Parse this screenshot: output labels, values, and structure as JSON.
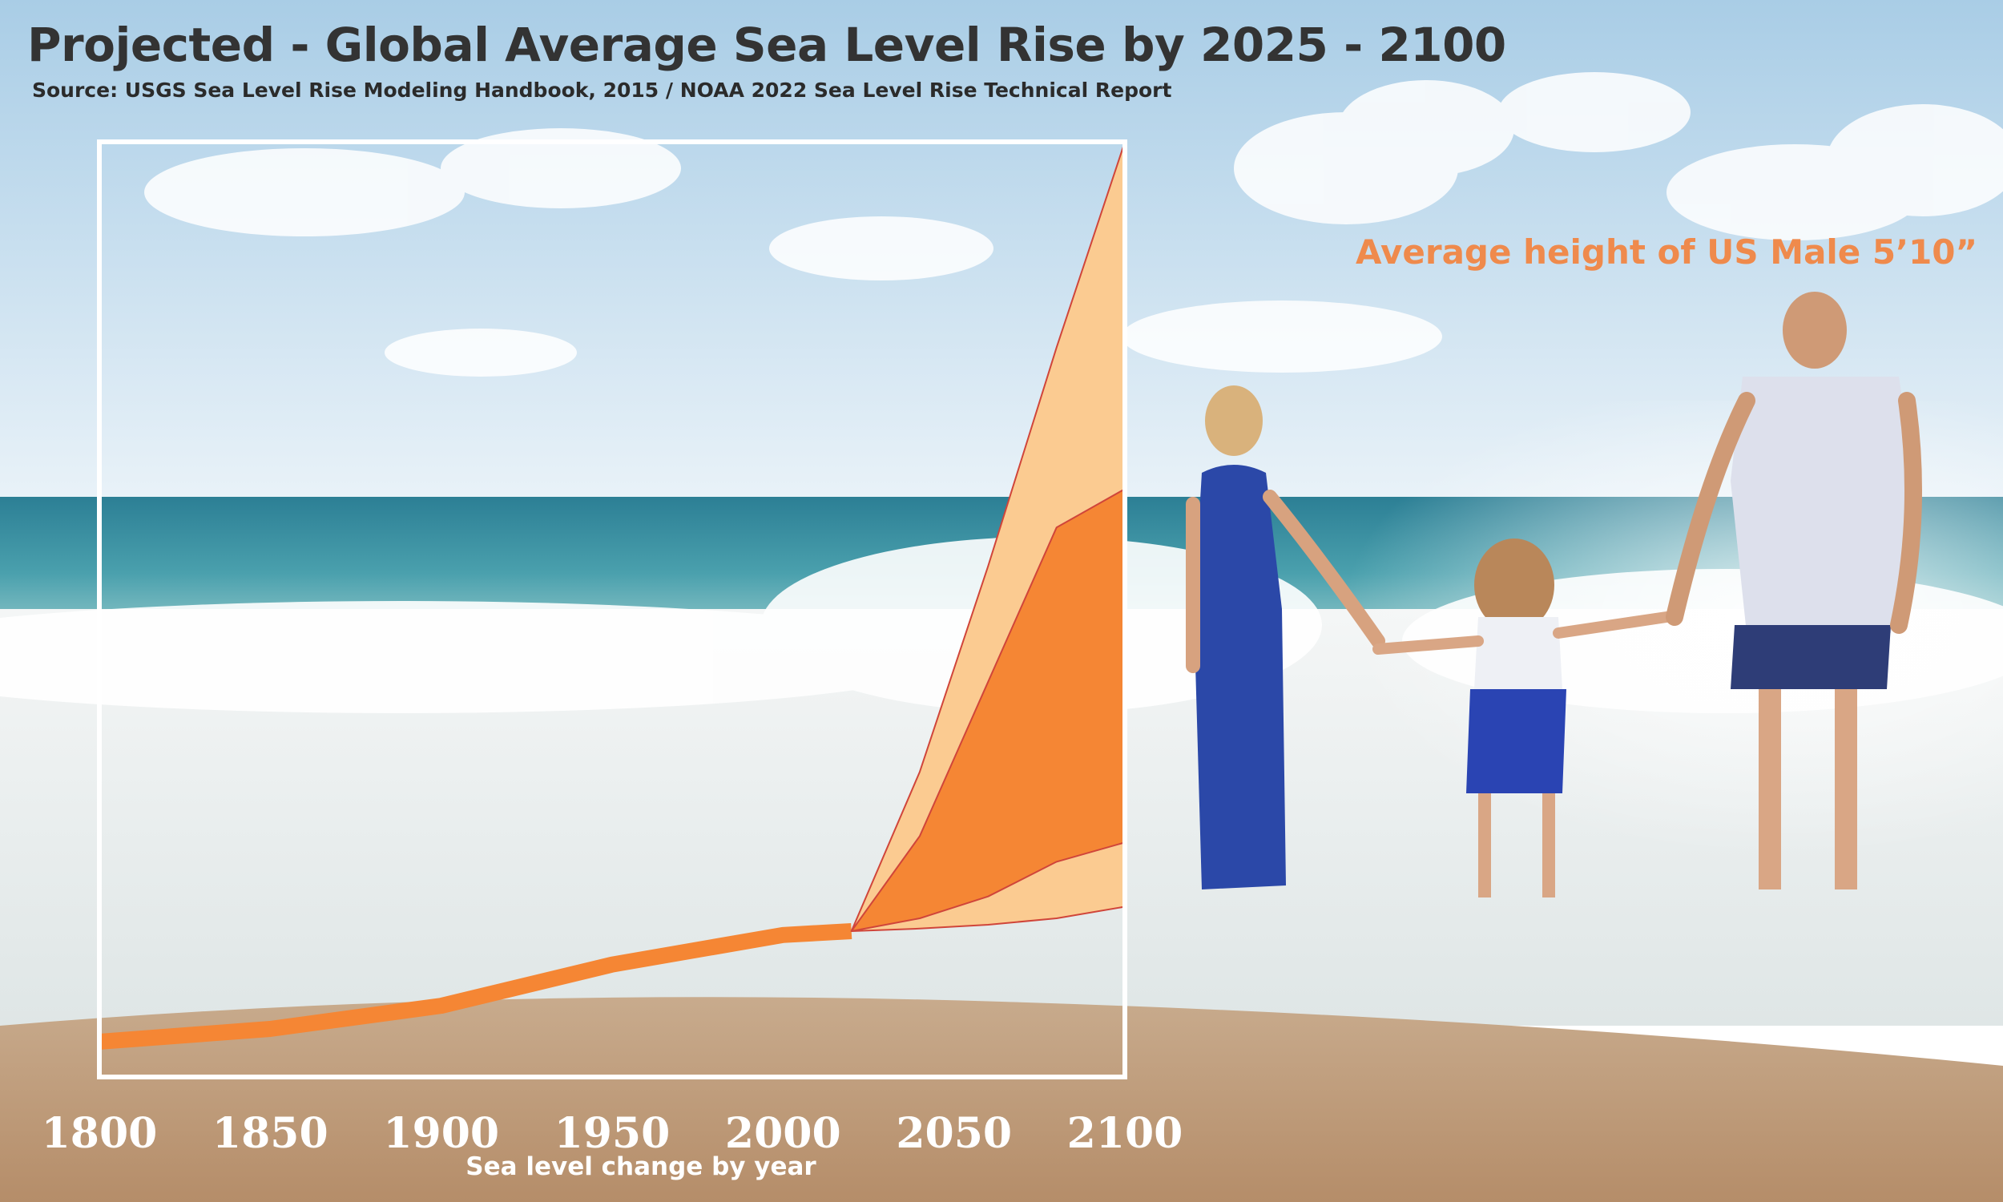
{
  "chart_data": {
    "type": "area",
    "title": "Projected - Global Average Sea Level Rise by 2025 - 2100",
    "subtitle": "Source:  USGS Sea Level Rise Modeling Handbook, 2015 / NOAA 2022 Sea Level Rise Technical Report",
    "xlabel": "Sea level change by year",
    "ylabel": "",
    "xlim": [
      1800,
      2100
    ],
    "x_ticks": [
      "1800",
      "1850",
      "1900",
      "1950",
      "2000",
      "2050",
      "2100"
    ],
    "y_units": "inches",
    "ylim": [
      0,
      70
    ],
    "grid": false,
    "legend": "none",
    "annotation": "Average height of US Male 5’10”",
    "annotation_value": 70,
    "series": [
      {
        "role": "historical",
        "x": [
          1800,
          1850,
          1900,
          1950,
          2000,
          2020
        ],
        "y": [
          0,
          1,
          2.8,
          6,
          8.3,
          8.6
        ],
        "color": "#f58634"
      },
      {
        "role": "outer-range",
        "x": [
          2020,
          2040,
          2060,
          2080,
          2100
        ],
        "y_low": [
          8.6,
          8.8,
          9.1,
          9.6,
          10.5
        ],
        "y_high": [
          8.6,
          21,
          37,
          54,
          70
        ],
        "color": "#fbcb91"
      },
      {
        "role": "likely-range",
        "x": [
          2020,
          2040,
          2060,
          2080,
          2100
        ],
        "y_low": [
          8.6,
          9.6,
          11.3,
          14,
          15.5
        ],
        "y_high": [
          8.6,
          16,
          28,
          40,
          43
        ],
        "color": "#f58634"
      }
    ]
  },
  "colors": {
    "chart_frame": "#ffffff",
    "title": "#333333",
    "annotation": "#ef8a4c",
    "range_outline": "#d0453a"
  }
}
